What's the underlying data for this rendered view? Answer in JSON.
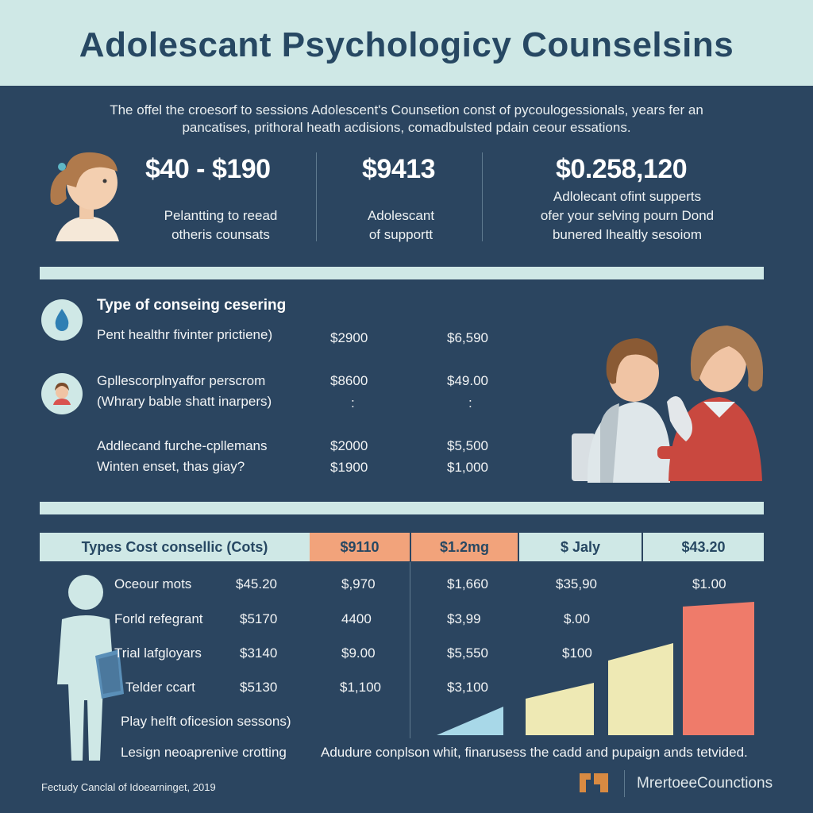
{
  "header": {
    "title": "Adolescant Psychologicy Counselsins"
  },
  "intro": {
    "line1": "The offel the croesorf to sessions Adolescent's Counsetion const of pycoulogessionals, years fer an",
    "line2": "pancatises, prithoral heath acdisions, comadbulsted pdain ceour essations."
  },
  "stats": [
    {
      "value": "$40 - $190",
      "desc1": "Pelantting to reead",
      "desc2": "otheris counsats"
    },
    {
      "value": "$9413",
      "desc1": "Adolescant",
      "desc2": "of supportt"
    },
    {
      "value": "$0.258,120",
      "desc1": "Adlolecant ofint supperts",
      "desc2": "ofer your selving pourn Dond",
      "desc3": "bunered lhealtly sesoiom"
    }
  ],
  "counseling": {
    "title": "Type of conseing cesering",
    "rows": [
      {
        "label1": "Pent healthr fivinter prictiene)",
        "label2": "",
        "price1": "$2900",
        "price2": "$6,590"
      },
      {
        "label1": "Gpllescorplnyaffor perscrom",
        "label2": "(Whrary bable shatt inarpers)",
        "price1": "$8600",
        "price2": "$49.00",
        "sub1": ":",
        "sub2": ":"
      },
      {
        "label1": "Addlecand furche-cpllemans",
        "label2": "Winten enset, thas giay?",
        "price1": "$2000",
        "price2": "$5,500",
        "price1b": "$1900",
        "price2b": "$1,000"
      }
    ]
  },
  "table": {
    "headers": [
      "Types Cost consellic (Cots)",
      "$9110",
      "$1.2mg",
      "$ Jaly",
      "$43.20"
    ],
    "header_colors": [
      "#cfe8e6",
      "#f2a37b",
      "#f2a37b",
      "#cfe8e6",
      "#cfe8e6"
    ],
    "rows": [
      {
        "label": "Oceour mots",
        "c1": "$45.20",
        "c2": "$,970",
        "c3": "$1,660",
        "c4": "$35,90",
        "c5": "$1.00"
      },
      {
        "label": "Forld refegrant",
        "c1": "$5170",
        "c2": "4400",
        "c3": "$3,99",
        "c4": "$.00",
        "c5": ""
      },
      {
        "label": "Trial lafgloyars",
        "c1": "$3140",
        "c2": "$9.00",
        "c3": "$5,550",
        "c4": "$100",
        "c5": ""
      },
      {
        "label": "Telder ccart",
        "c1": "$5130",
        "c2": "$1,100",
        "c3": "$3,100",
        "c4": "",
        "c5": ""
      }
    ],
    "extra_labels": [
      "Play helft oficesion sessons)",
      "Lesign neoaprenive crotting"
    ],
    "caption": "Adudure conplson whit, finarusess the cadd and pupaign ands tetvided."
  },
  "footer": {
    "left": "Fectudy Canclal of Idoearninget, 2019",
    "brand": "MrertoeeCounctions"
  },
  "colors": {
    "header_bg": "#cfe8e6",
    "body_bg": "#2b4560",
    "accent_orange": "#f2a37b",
    "bar_blue": "#a8d8e8",
    "bar_yellow": "#eee9b4",
    "bar_red": "#ef7b6a"
  }
}
